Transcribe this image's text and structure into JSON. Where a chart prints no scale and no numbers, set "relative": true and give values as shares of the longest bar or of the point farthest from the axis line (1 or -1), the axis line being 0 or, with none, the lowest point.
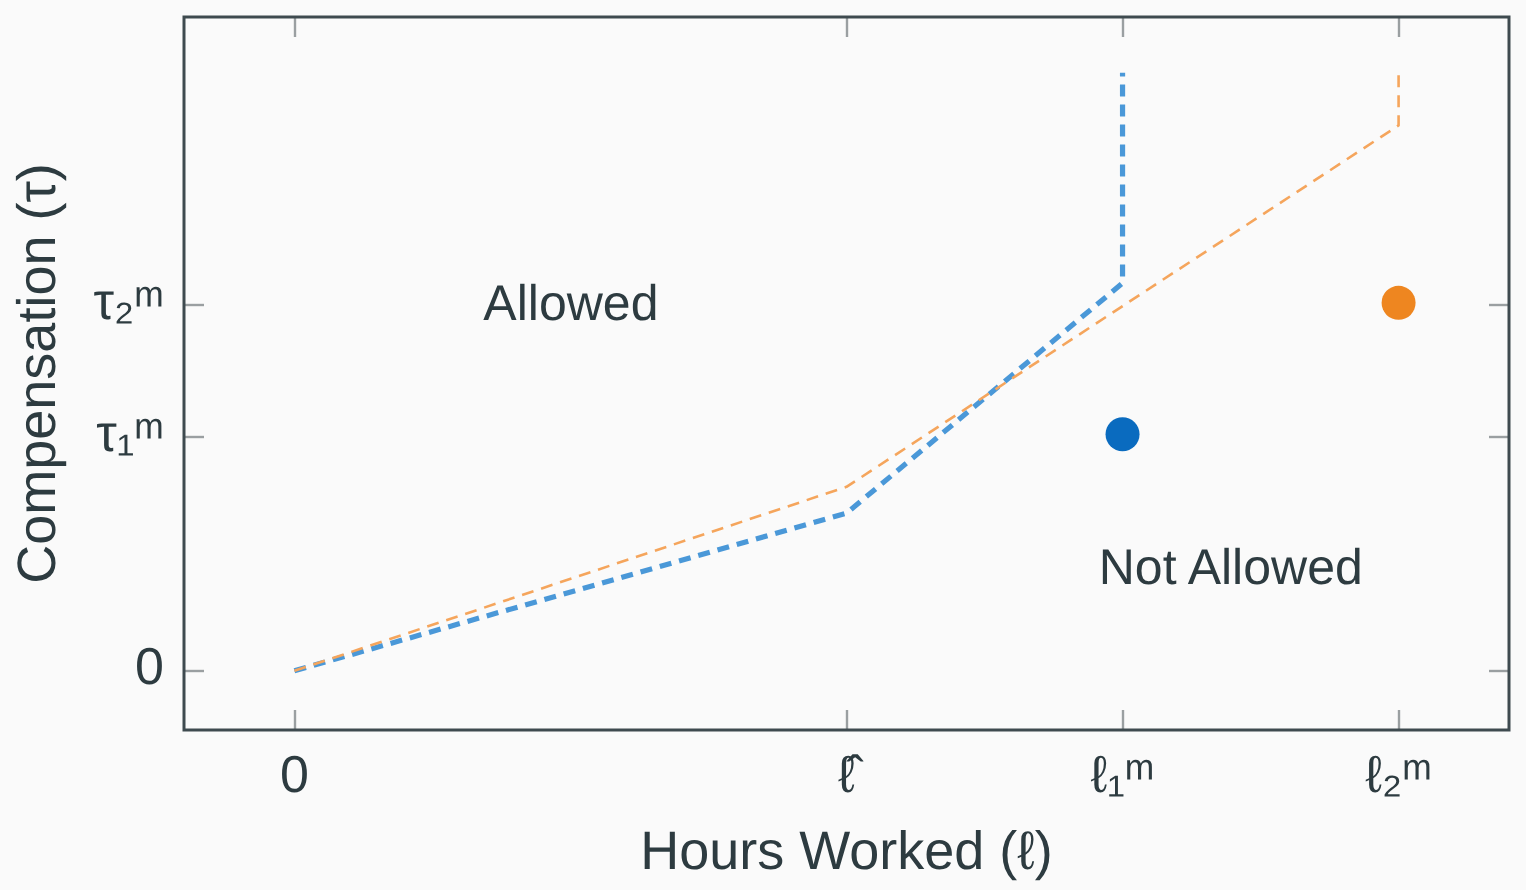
{
  "chart_data": {
    "type": "line",
    "xlabel": "Hours Worked (ℓ)",
    "ylabel": "Compensation (τ)",
    "relative": true,
    "categories": [
      "0",
      null,
      "ℓ̂",
      "ℓ₁ᵐ",
      "ℓ₂ᵐ"
    ],
    "series": [
      {
        "color": "#4a98d8",
        "x": [
          "0",
          "ℓ̂",
          "ℓ₁ᵐ",
          "ℓ₁ᵐ"
        ],
        "values": [
          0.09,
          0.33,
          0.68,
          1
        ]
      },
      {
        "color": "#f5a55c",
        "x": [
          "0",
          "ℓ̂",
          "ℓ₂ᵐ",
          "ℓ₂ᵐ"
        ],
        "values": [
          0.09,
          0.37,
          0.92,
          1
        ]
      },
      {
        "type": "scatter",
        "marker": "circle",
        "color": "#0a6bbf",
        "x": [
          "ℓ₁ᵐ"
        ],
        "values": [
          0.45
        ]
      },
      {
        "type": "scatter",
        "marker": "circle",
        "color": "#ee8620",
        "x": [
          "ℓ₂ᵐ"
        ],
        "values": [
          0.65
        ]
      }
    ],
    "annotations": [
      "Allowed",
      "Not Allowed",
      "0",
      "τ₁ᵐ",
      "τ₂ᵐ"
    ],
    "grid": false,
    "legend": false,
    "marker": "none",
    "line_style": "dashed"
  }
}
